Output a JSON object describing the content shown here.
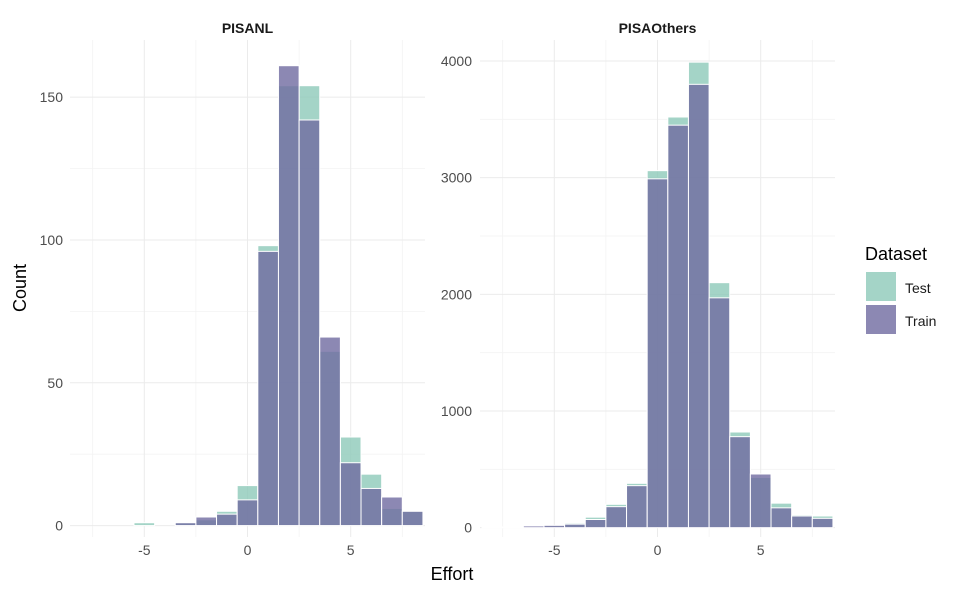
{
  "chart_data": {
    "type": "bar",
    "xlabel": "Effort",
    "ylabel": "Count",
    "legend": {
      "title": "Dataset",
      "position": "right",
      "entries": [
        {
          "name": "Test",
          "color": "#8dc9b9"
        },
        {
          "name": "Train",
          "color": "#6f6aa0"
        }
      ]
    },
    "grid": true,
    "bin_width": 1,
    "panels": [
      {
        "title": "PISANL",
        "xlim": [
          -8.6,
          8.6
        ],
        "ylim": [
          -4,
          170
        ],
        "x_ticks": [
          -5,
          0,
          5
        ],
        "x_tick_labels": [
          "-5",
          "0",
          "5"
        ],
        "y_ticks": [
          0,
          50,
          100,
          150
        ],
        "y_tick_labels": [
          "0",
          "50",
          "100",
          "150"
        ],
        "x": [
          -5,
          -4,
          -3,
          -2,
          -1,
          0,
          1,
          2,
          3,
          4,
          5,
          6,
          7,
          8
        ],
        "series": [
          {
            "name": "Test",
            "values": [
              1,
              0,
              1,
              2,
              5,
              14,
              98,
              154,
              154,
              61,
              31,
              18,
              6,
              5
            ]
          },
          {
            "name": "Train",
            "values": [
              0,
              0,
              1,
              3,
              4,
              9,
              96,
              161,
              142,
              66,
              22,
              13,
              10,
              5
            ]
          }
        ]
      },
      {
        "title": "PISAOthers",
        "xlim": [
          -8.6,
          8.6
        ],
        "ylim": [
          -80,
          4180
        ],
        "x_ticks": [
          -5,
          0,
          5
        ],
        "x_tick_labels": [
          "-5",
          "0",
          "5"
        ],
        "y_ticks": [
          0,
          1000,
          2000,
          3000,
          4000
        ],
        "y_tick_labels": [
          "0",
          "1000",
          "2000",
          "3000",
          "4000"
        ],
        "x": [
          -8,
          -7,
          -6,
          -5,
          -4,
          -3,
          -2,
          -1,
          0,
          1,
          2,
          3,
          4,
          5,
          6,
          7,
          8
        ],
        "series": [
          {
            "name": "Test",
            "values": [
              5,
              5,
              10,
              15,
              40,
              90,
              200,
              380,
              3060,
              3520,
              3990,
              2100,
              820,
              430,
              210,
              110,
              100
            ]
          },
          {
            "name": "Train",
            "values": [
              5,
              5,
              15,
              20,
              30,
              70,
              180,
              360,
              2990,
              3450,
              3800,
              1970,
              780,
              460,
              170,
              100,
              80
            ]
          }
        ]
      }
    ]
  }
}
